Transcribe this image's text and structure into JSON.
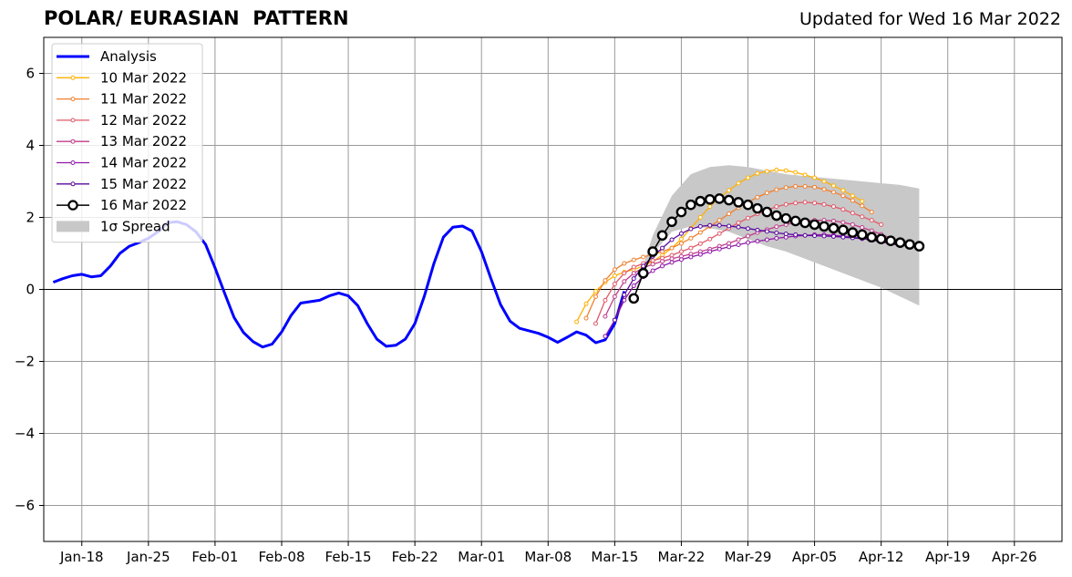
{
  "header": {
    "title": "POLAR/ EURASIAN  PATTERN",
    "subtitle": "Updated for Wed 16 Mar 2022"
  },
  "chart_data": {
    "type": "line",
    "title": "POLAR/ EURASIAN  PATTERN",
    "subtitle": "Updated for Wed 16 Mar 2022",
    "xlabel": "",
    "ylabel": "",
    "ylim": [
      -7,
      7
    ],
    "xlim": [
      "2022-01-14",
      "2022-05-01"
    ],
    "grid": true,
    "legend_position": "top-left",
    "x_tick_labels": [
      "Jan-18",
      "Jan-25",
      "Feb-01",
      "Feb-08",
      "Feb-15",
      "Feb-22",
      "Mar-01",
      "Mar-08",
      "Mar-15",
      "Mar-22",
      "Mar-29",
      "Apr-05",
      "Apr-12",
      "Apr-19",
      "Apr-26"
    ],
    "x_tick_dates": [
      "2022-01-18",
      "2022-01-25",
      "2022-02-01",
      "2022-02-08",
      "2022-02-15",
      "2022-02-22",
      "2022-03-01",
      "2022-03-08",
      "2022-03-15",
      "2022-03-22",
      "2022-03-29",
      "2022-04-05",
      "2022-04-12",
      "2022-04-19",
      "2022-04-26"
    ],
    "y_ticks": [
      -6,
      -4,
      -2,
      0,
      2,
      4,
      6
    ],
    "y_tick_labels": [
      "−6",
      "−4",
      "−2",
      "0",
      "2",
      "4",
      "6"
    ],
    "spread": {
      "name": "1σ Spread",
      "color": "#c8c8c8",
      "x": [
        "2022-03-17",
        "2022-03-19",
        "2022-03-21",
        "2022-03-23",
        "2022-03-25",
        "2022-03-27",
        "2022-03-29",
        "2022-03-31",
        "2022-04-02",
        "2022-04-04",
        "2022-04-06",
        "2022-04-08",
        "2022-04-10",
        "2022-04-12",
        "2022-04-14",
        "2022-04-16"
      ],
      "upper": [
        -0.2,
        1.5,
        2.6,
        3.2,
        3.4,
        3.45,
        3.4,
        3.3,
        3.2,
        3.15,
        3.1,
        3.05,
        3.0,
        2.95,
        2.9,
        2.8
      ],
      "lower": [
        -0.2,
        1.0,
        1.6,
        1.75,
        1.7,
        1.6,
        1.4,
        1.2,
        1.05,
        0.85,
        0.65,
        0.45,
        0.25,
        0.05,
        -0.2,
        -0.45
      ]
    },
    "series": [
      {
        "name": "Analysis",
        "color": "#0000ff",
        "style": "analysis",
        "x": [
          "2022-01-15",
          "2022-01-16",
          "2022-01-17",
          "2022-01-18",
          "2022-01-19",
          "2022-01-20",
          "2022-01-21",
          "2022-01-22",
          "2022-01-23",
          "2022-01-24",
          "2022-01-25",
          "2022-01-26",
          "2022-01-27",
          "2022-01-28",
          "2022-01-29",
          "2022-01-30",
          "2022-01-31",
          "2022-02-01",
          "2022-02-02",
          "2022-02-03",
          "2022-02-04",
          "2022-02-05",
          "2022-02-06",
          "2022-02-07",
          "2022-02-08",
          "2022-02-09",
          "2022-02-10",
          "2022-02-12",
          "2022-02-13",
          "2022-02-14",
          "2022-02-15",
          "2022-02-16",
          "2022-02-17",
          "2022-02-18",
          "2022-02-19",
          "2022-02-20",
          "2022-02-21",
          "2022-02-22",
          "2022-02-23",
          "2022-02-24",
          "2022-02-25",
          "2022-02-26",
          "2022-02-27",
          "2022-02-28",
          "2022-03-01",
          "2022-03-02",
          "2022-03-03",
          "2022-03-04",
          "2022-03-05",
          "2022-03-07",
          "2022-03-08",
          "2022-03-09",
          "2022-03-10",
          "2022-03-11",
          "2022-03-12",
          "2022-03-13",
          "2022-03-14",
          "2022-03-15",
          "2022-03-16"
        ],
        "values": [
          0.2,
          0.3,
          0.38,
          0.42,
          0.35,
          0.38,
          0.65,
          1.0,
          1.2,
          1.3,
          1.42,
          1.6,
          1.85,
          1.88,
          1.8,
          1.6,
          1.25,
          0.6,
          -0.1,
          -0.78,
          -1.2,
          -1.45,
          -1.6,
          -1.52,
          -1.18,
          -0.72,
          -0.38,
          -0.3,
          -0.18,
          -0.1,
          -0.18,
          -0.45,
          -0.95,
          -1.38,
          -1.58,
          -1.55,
          -1.38,
          -0.95,
          -0.18,
          0.72,
          1.45,
          1.73,
          1.76,
          1.62,
          1.05,
          0.3,
          -0.42,
          -0.88,
          -1.08,
          -1.22,
          -1.33,
          -1.47,
          -1.33,
          -1.18,
          -1.27,
          -1.48,
          -1.4,
          -0.95,
          -0.05
        ]
      },
      {
        "name": "10 Mar 2022",
        "color": "#ffb000",
        "style": "small",
        "x": [
          "2022-03-11",
          "2022-03-12",
          "2022-03-13",
          "2022-03-14",
          "2022-03-15",
          "2022-03-16",
          "2022-03-17",
          "2022-03-18",
          "2022-03-19",
          "2022-03-20",
          "2022-03-21",
          "2022-03-22",
          "2022-03-23",
          "2022-03-24",
          "2022-03-25",
          "2022-03-26",
          "2022-03-27",
          "2022-03-28",
          "2022-03-29",
          "2022-03-30",
          "2022-03-31",
          "2022-04-01",
          "2022-04-02",
          "2022-04-03",
          "2022-04-04",
          "2022-04-05",
          "2022-04-06",
          "2022-04-07",
          "2022-04-08",
          "2022-04-09",
          "2022-04-10"
        ],
        "values": [
          -0.9,
          -0.4,
          -0.05,
          0.2,
          0.38,
          0.48,
          0.55,
          0.65,
          0.78,
          0.95,
          1.15,
          1.4,
          1.7,
          2.0,
          2.3,
          2.55,
          2.75,
          2.95,
          3.1,
          3.22,
          3.28,
          3.32,
          3.3,
          3.25,
          3.18,
          3.1,
          3.0,
          2.88,
          2.75,
          2.6,
          2.45
        ]
      },
      {
        "name": "11 Mar 2022",
        "color": "#f08030",
        "style": "small",
        "x": [
          "2022-03-12",
          "2022-03-13",
          "2022-03-14",
          "2022-03-15",
          "2022-03-16",
          "2022-03-17",
          "2022-03-18",
          "2022-03-19",
          "2022-03-20",
          "2022-03-21",
          "2022-03-22",
          "2022-03-23",
          "2022-03-24",
          "2022-03-25",
          "2022-03-26",
          "2022-03-27",
          "2022-03-28",
          "2022-03-29",
          "2022-03-30",
          "2022-03-31",
          "2022-04-01",
          "2022-04-02",
          "2022-04-03",
          "2022-04-04",
          "2022-04-05",
          "2022-04-06",
          "2022-04-07",
          "2022-04-08",
          "2022-04-09",
          "2022-04-10",
          "2022-04-11"
        ],
        "values": [
          -0.8,
          -0.2,
          0.25,
          0.55,
          0.72,
          0.82,
          0.9,
          0.97,
          1.05,
          1.15,
          1.28,
          1.42,
          1.58,
          1.75,
          1.92,
          2.1,
          2.27,
          2.42,
          2.56,
          2.68,
          2.77,
          2.83,
          2.86,
          2.86,
          2.84,
          2.78,
          2.7,
          2.6,
          2.47,
          2.32,
          2.15
        ]
      },
      {
        "name": "12 Mar 2022",
        "color": "#e05868",
        "style": "small",
        "x": [
          "2022-03-13",
          "2022-03-14",
          "2022-03-15",
          "2022-03-16",
          "2022-03-17",
          "2022-03-18",
          "2022-03-19",
          "2022-03-20",
          "2022-03-21",
          "2022-03-22",
          "2022-03-23",
          "2022-03-24",
          "2022-03-25",
          "2022-03-26",
          "2022-03-27",
          "2022-03-28",
          "2022-03-29",
          "2022-03-30",
          "2022-03-31",
          "2022-04-01",
          "2022-04-02",
          "2022-04-03",
          "2022-04-04",
          "2022-04-05",
          "2022-04-06",
          "2022-04-07",
          "2022-04-08",
          "2022-04-09",
          "2022-04-10",
          "2022-04-11",
          "2022-04-12"
        ],
        "values": [
          -0.95,
          -0.3,
          0.15,
          0.45,
          0.62,
          0.72,
          0.8,
          0.87,
          0.95,
          1.05,
          1.15,
          1.27,
          1.4,
          1.55,
          1.7,
          1.85,
          1.98,
          2.1,
          2.2,
          2.3,
          2.36,
          2.4,
          2.42,
          2.4,
          2.36,
          2.3,
          2.22,
          2.12,
          2.02,
          1.92,
          1.8
        ]
      },
      {
        "name": "13 Mar 2022",
        "color": "#c03c88",
        "style": "small",
        "x": [
          "2022-03-14",
          "2022-03-15",
          "2022-03-16",
          "2022-03-17",
          "2022-03-18",
          "2022-03-19",
          "2022-03-20",
          "2022-03-21",
          "2022-03-22",
          "2022-03-23",
          "2022-03-24",
          "2022-03-25",
          "2022-03-26",
          "2022-03-27",
          "2022-03-28",
          "2022-03-29",
          "2022-03-30",
          "2022-03-31",
          "2022-04-01",
          "2022-04-02",
          "2022-04-03",
          "2022-04-04",
          "2022-04-05",
          "2022-04-06",
          "2022-04-07",
          "2022-04-08",
          "2022-04-09",
          "2022-04-10",
          "2022-04-11",
          "2022-04-12",
          "2022-04-13"
        ],
        "values": [
          -0.75,
          -0.2,
          0.22,
          0.45,
          0.6,
          0.7,
          0.78,
          0.85,
          0.92,
          0.98,
          1.05,
          1.12,
          1.2,
          1.28,
          1.38,
          1.48,
          1.58,
          1.66,
          1.74,
          1.8,
          1.86,
          1.9,
          1.92,
          1.92,
          1.9,
          1.86,
          1.8,
          1.72,
          1.63,
          1.53,
          1.42
        ]
      },
      {
        "name": "14 Mar 2022",
        "color": "#9018a8",
        "style": "small",
        "x": [
          "2022-03-14",
          "2022-03-15",
          "2022-03-16",
          "2022-03-17",
          "2022-03-18",
          "2022-03-19",
          "2022-03-20",
          "2022-03-21",
          "2022-03-22",
          "2022-03-23",
          "2022-03-24",
          "2022-03-25",
          "2022-03-26",
          "2022-03-27",
          "2022-03-28",
          "2022-03-29",
          "2022-03-30",
          "2022-03-31",
          "2022-04-01",
          "2022-04-02",
          "2022-04-03",
          "2022-04-04",
          "2022-04-05",
          "2022-04-06",
          "2022-04-07",
          "2022-04-08",
          "2022-04-09",
          "2022-04-10",
          "2022-04-11",
          "2022-04-12",
          "2022-04-13",
          "2022-04-14"
        ],
        "values": [
          -1.3,
          -0.85,
          -0.3,
          0.1,
          0.35,
          0.52,
          0.65,
          0.75,
          0.83,
          0.9,
          0.97,
          1.05,
          1.12,
          1.18,
          1.24,
          1.3,
          1.34,
          1.38,
          1.42,
          1.45,
          1.48,
          1.5,
          1.52,
          1.52,
          1.5,
          1.48,
          1.45,
          1.41,
          1.37,
          1.32,
          1.27,
          1.22
        ]
      },
      {
        "name": "15 Mar 2022",
        "color": "#5a0a9e",
        "style": "small",
        "x": [
          "2022-03-15",
          "2022-03-16",
          "2022-03-17",
          "2022-03-18",
          "2022-03-19",
          "2022-03-20",
          "2022-03-21",
          "2022-03-22",
          "2022-03-23",
          "2022-03-24",
          "2022-03-25",
          "2022-03-26",
          "2022-03-27",
          "2022-03-28",
          "2022-03-29",
          "2022-03-30",
          "2022-03-31",
          "2022-04-01",
          "2022-04-02",
          "2022-04-03",
          "2022-04-04",
          "2022-04-05",
          "2022-04-06",
          "2022-04-07",
          "2022-04-08",
          "2022-04-09",
          "2022-04-10",
          "2022-04-11",
          "2022-04-12",
          "2022-04-13",
          "2022-04-14"
        ],
        "values": [
          -0.85,
          -0.15,
          0.3,
          0.65,
          0.92,
          1.15,
          1.38,
          1.55,
          1.68,
          1.75,
          1.78,
          1.78,
          1.76,
          1.73,
          1.69,
          1.65,
          1.61,
          1.57,
          1.54,
          1.52,
          1.5,
          1.49,
          1.48,
          1.47,
          1.45,
          1.43,
          1.41,
          1.39,
          1.36,
          1.33,
          1.3
        ]
      },
      {
        "name": "16 Mar 2022",
        "color": "#000000",
        "style": "big",
        "x": [
          "2022-03-17",
          "2022-03-18",
          "2022-03-19",
          "2022-03-20",
          "2022-03-21",
          "2022-03-22",
          "2022-03-23",
          "2022-03-24",
          "2022-03-25",
          "2022-03-26",
          "2022-03-27",
          "2022-03-28",
          "2022-03-29",
          "2022-03-30",
          "2022-03-31",
          "2022-04-01",
          "2022-04-02",
          "2022-04-03",
          "2022-04-04",
          "2022-04-05",
          "2022-04-06",
          "2022-04-07",
          "2022-04-08",
          "2022-04-09",
          "2022-04-10",
          "2022-04-11",
          "2022-04-12",
          "2022-04-13",
          "2022-04-14",
          "2022-04-15",
          "2022-04-16"
        ],
        "values": [
          -0.25,
          0.45,
          1.05,
          1.5,
          1.88,
          2.15,
          2.35,
          2.45,
          2.5,
          2.52,
          2.48,
          2.42,
          2.35,
          2.25,
          2.15,
          2.05,
          1.97,
          1.9,
          1.85,
          1.8,
          1.75,
          1.7,
          1.65,
          1.58,
          1.52,
          1.45,
          1.4,
          1.35,
          1.3,
          1.25,
          1.2
        ]
      }
    ]
  }
}
